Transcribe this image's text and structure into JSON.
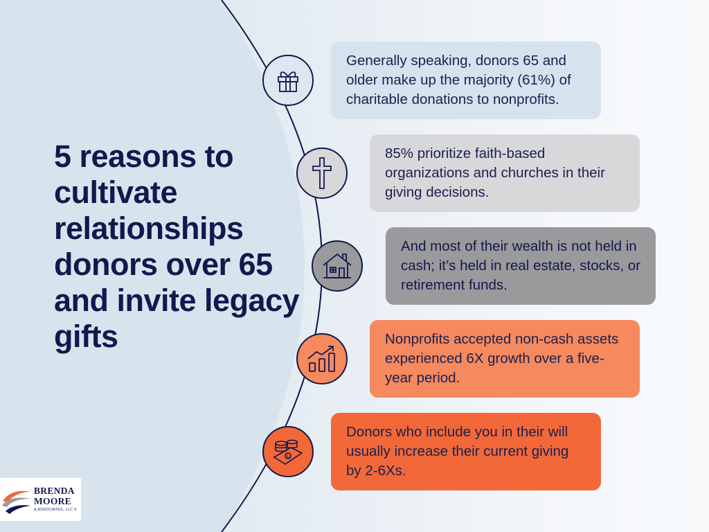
{
  "title": "5 reasons to cultivate relationships donors over 65 and invite legacy gifts",
  "reasons": [
    {
      "text": "Generally speaking, donors 65 and older make up the majority (61%) of charitable donations to nonprofits.",
      "icon": "gift-icon",
      "color": "#d6e3ee"
    },
    {
      "text": "85% prioritize faith-based organizations and churches in their giving decisions.",
      "icon": "cross-icon",
      "color": "#d8d8da"
    },
    {
      "text": "And most of their wealth is not held in cash; it’s held in real estate, stocks, or retirement funds.",
      "icon": "house-icon",
      "color": "#9a9a9c"
    },
    {
      "text": "Nonprofits accepted non-cash assets experienced 6X growth over a five-year period.",
      "icon": "growth-chart-icon",
      "color": "#f6895d"
    },
    {
      "text": "Donors who include you in their will usually increase their current giving by 2-6Xs.",
      "icon": "money-coins-icon",
      "color": "#f26838"
    }
  ],
  "logo": {
    "line1": "BRENDA",
    "line2": "MOORE",
    "line3": "& ASSOCIATES, LLC ©"
  },
  "colors": {
    "navy": "#13184d",
    "orange": "#f26838",
    "light_orange": "#f6895d",
    "gray": "#9a9a9c"
  }
}
